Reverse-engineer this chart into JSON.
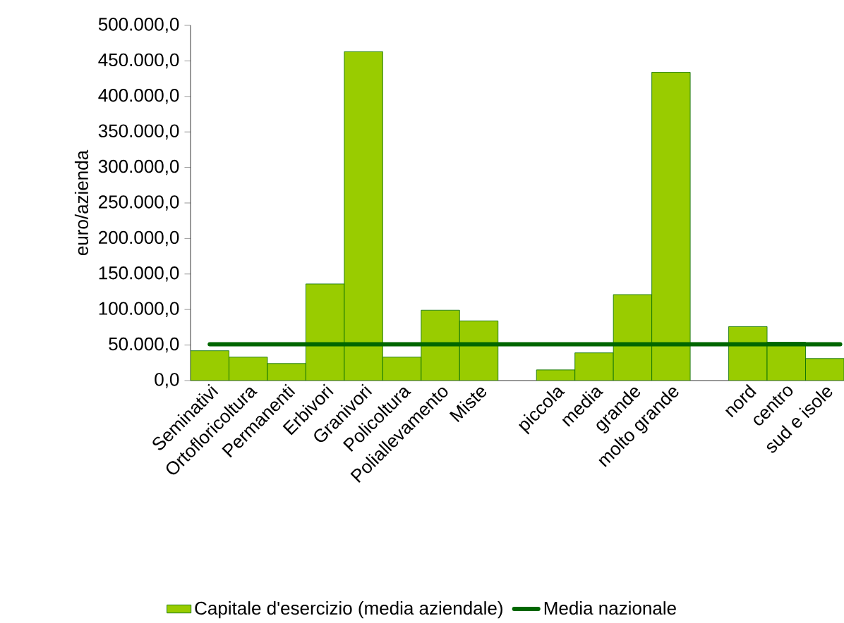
{
  "chart_data": {
    "type": "bar",
    "ylabel": "euro/azienda",
    "categories": [
      "Seminativi",
      "Ortofloricoltura",
      "Permanenti",
      "Erbivori",
      "Granivori",
      "Policoltura",
      "Poliallevamento",
      "Miste",
      null,
      "piccola",
      "media",
      "grande",
      "molto grande",
      null,
      "nord",
      "centro",
      "sud e isole"
    ],
    "series": [
      {
        "name": "Capitale d'esercizio (media aziendale)",
        "color": "#99cc00",
        "values": [
          42000,
          33000,
          24000,
          136000,
          463000,
          33000,
          99000,
          84000,
          null,
          15000,
          39000,
          121000,
          434000,
          null,
          76000,
          54000,
          31000
        ]
      }
    ],
    "ylim": [
      0,
      500000
    ],
    "yticks": [
      {
        "value": 0,
        "label": "0,0"
      },
      {
        "value": 50000,
        "label": "50.000,0"
      },
      {
        "value": 100000,
        "label": "100.000,0"
      },
      {
        "value": 150000,
        "label": "150.000,0"
      },
      {
        "value": 200000,
        "label": "200.000,0"
      },
      {
        "value": 250000,
        "label": "250.000,0"
      },
      {
        "value": 300000,
        "label": "300.000,0"
      },
      {
        "value": 350000,
        "label": "350.000,0"
      },
      {
        "value": 400000,
        "label": "400.000,0"
      },
      {
        "value": 450000,
        "label": "450.000,0"
      },
      {
        "value": 500000,
        "label": "500.000,0"
      }
    ],
    "ref_lines": [
      {
        "axis": "y",
        "value": 51000,
        "label": "Media nazionale",
        "color": "#006600"
      }
    ],
    "grid": false,
    "legend": "bottom"
  }
}
